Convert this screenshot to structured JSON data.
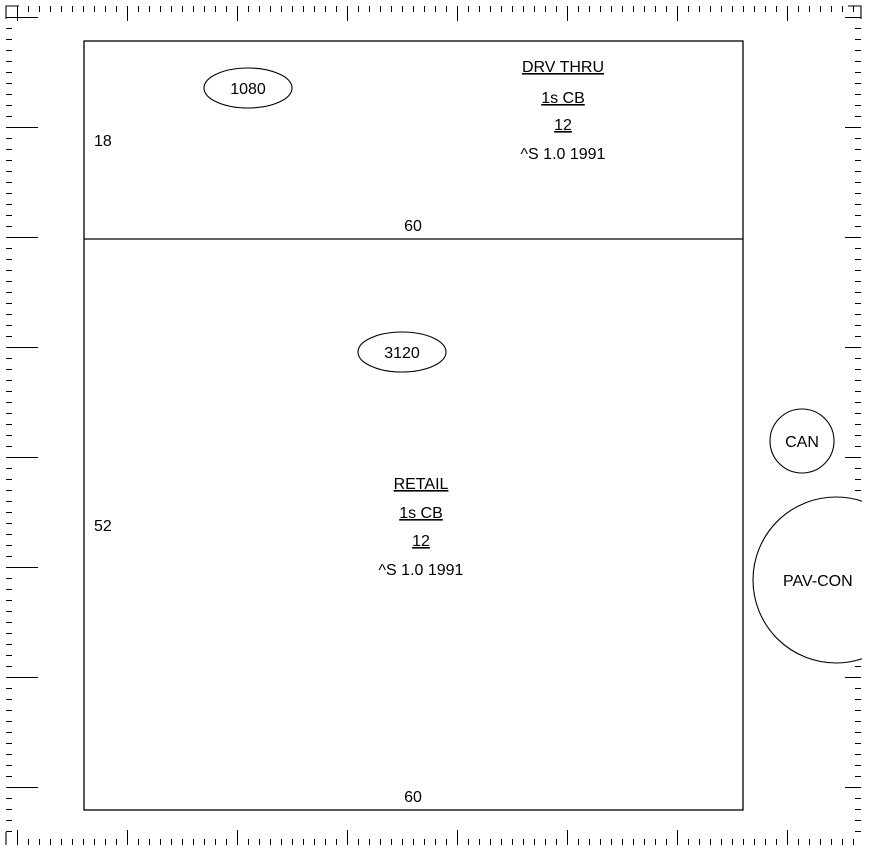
{
  "sketch": {
    "areas": [
      {
        "id": "drive-thru",
        "area_label": "1080",
        "use_label": "DRV THRU",
        "construction_label": "1s CB",
        "height_label": "12",
        "detail_label": "^S 1.0 1991",
        "width_label": "60",
        "depth_label": "18"
      },
      {
        "id": "retail",
        "area_label": "3120",
        "use_label": "RETAIL",
        "construction_label": "1s CB",
        "height_label": "12",
        "detail_label": "^S 1.0 1991",
        "width_label": "60",
        "depth_label": "52"
      }
    ],
    "symbols": [
      {
        "id": "canopy",
        "label": "CAN"
      },
      {
        "id": "paving",
        "label": "PAV-CON"
      }
    ],
    "line_color": "#000000",
    "background_color": "#ffffff"
  }
}
